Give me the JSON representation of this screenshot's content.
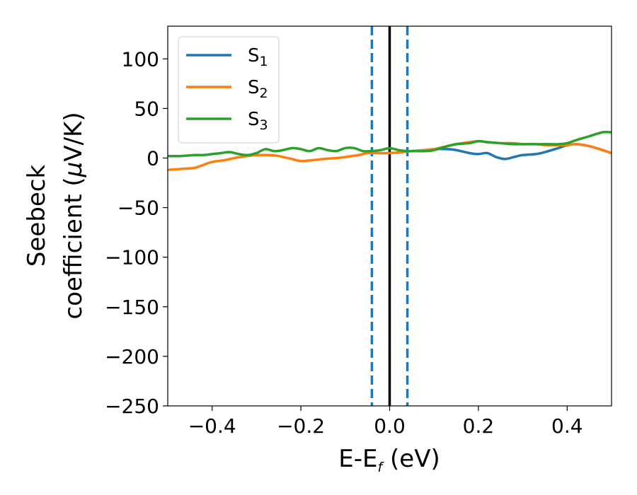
{
  "chart_data": {
    "type": "line",
    "title": "",
    "xlabel": {
      "main": "E-E",
      "sub": "f",
      "unit": " (eV)"
    },
    "ylabel": {
      "line1": "Seebeck",
      "line2": "coefficient  (",
      "mu": "μ",
      "unit": "V/K)"
    },
    "xlim": [
      -0.5,
      0.5
    ],
    "ylim": [
      -250,
      133
    ],
    "x_ticks": [
      -0.4,
      -0.2,
      0.0,
      0.2,
      0.4
    ],
    "x_tick_labels": [
      "−0.4",
      "−0.2",
      "0.0",
      "0.2",
      "0.4"
    ],
    "y_ticks": [
      100,
      50,
      0,
      -50,
      -100,
      -150,
      -200,
      -250
    ],
    "y_tick_labels": [
      "100",
      "50",
      "0",
      "−50",
      "−100",
      "−150",
      "−200",
      "−250"
    ],
    "grid": false,
    "legend_position": "top-left",
    "reference_lines": [
      {
        "x": 0.0,
        "style": "solid",
        "color": "#000000"
      },
      {
        "x": -0.04,
        "style": "dashed",
        "color": "#1f77b4"
      },
      {
        "x": 0.04,
        "style": "dashed",
        "color": "#1f77b4"
      }
    ],
    "series": [
      {
        "name": "S",
        "sub": "1",
        "color": "#1f77b4",
        "x": [
          0.05,
          0.08,
          0.1,
          0.13,
          0.15,
          0.18,
          0.2,
          0.22,
          0.24,
          0.26,
          0.28,
          0.3,
          0.33,
          0.35,
          0.38,
          0.4,
          0.42,
          0.45,
          0.48,
          0.5
        ],
        "y": [
          7,
          8,
          9,
          9,
          8,
          5,
          4,
          5,
          1,
          -1,
          1,
          3,
          4,
          6,
          10,
          13,
          14,
          12,
          8,
          5
        ]
      },
      {
        "name": "S",
        "sub": "2",
        "color": "#ff7f0e",
        "x": [
          -0.5,
          -0.47,
          -0.44,
          -0.42,
          -0.4,
          -0.37,
          -0.35,
          -0.32,
          -0.3,
          -0.27,
          -0.25,
          -0.22,
          -0.2,
          -0.17,
          -0.15,
          -0.12,
          -0.1,
          -0.07,
          -0.05,
          -0.03,
          0.0,
          0.03,
          0.05,
          0.08,
          0.1,
          0.13,
          0.15,
          0.18,
          0.2,
          0.22,
          0.25,
          0.28,
          0.3,
          0.33,
          0.35,
          0.38,
          0.4,
          0.42,
          0.45,
          0.48,
          0.5
        ],
        "y": [
          -12,
          -11,
          -10,
          -7,
          -4,
          -2,
          0,
          2,
          3,
          3,
          2,
          -1,
          -3,
          -2,
          -1,
          0,
          1,
          3,
          5,
          5,
          5,
          6,
          7,
          8,
          9,
          12,
          14,
          16,
          17,
          16,
          15,
          15,
          14,
          14,
          13,
          13,
          13,
          14,
          12,
          8,
          5
        ]
      },
      {
        "name": "S",
        "sub": "3",
        "color": "#2ca02c",
        "x": [
          -0.5,
          -0.47,
          -0.44,
          -0.42,
          -0.4,
          -0.38,
          -0.36,
          -0.34,
          -0.32,
          -0.3,
          -0.28,
          -0.26,
          -0.24,
          -0.22,
          -0.2,
          -0.18,
          -0.16,
          -0.14,
          -0.12,
          -0.1,
          -0.08,
          -0.06,
          -0.04,
          -0.02,
          0.0,
          0.02,
          0.04,
          0.06,
          0.08,
          0.1,
          0.13,
          0.15,
          0.18,
          0.2,
          0.22,
          0.25,
          0.28,
          0.3,
          0.33,
          0.35,
          0.38,
          0.4,
          0.42,
          0.45,
          0.48,
          0.5
        ],
        "y": [
          2,
          2,
          3,
          3,
          4,
          5,
          6,
          4,
          3,
          5,
          9,
          7,
          8,
          10,
          9,
          7,
          10,
          8,
          7,
          10,
          10,
          7,
          7,
          8,
          10,
          8,
          7,
          7,
          7,
          8,
          12,
          14,
          15,
          17,
          16,
          15,
          14,
          14,
          14,
          14,
          14,
          15,
          18,
          22,
          26,
          26
        ]
      }
    ]
  }
}
